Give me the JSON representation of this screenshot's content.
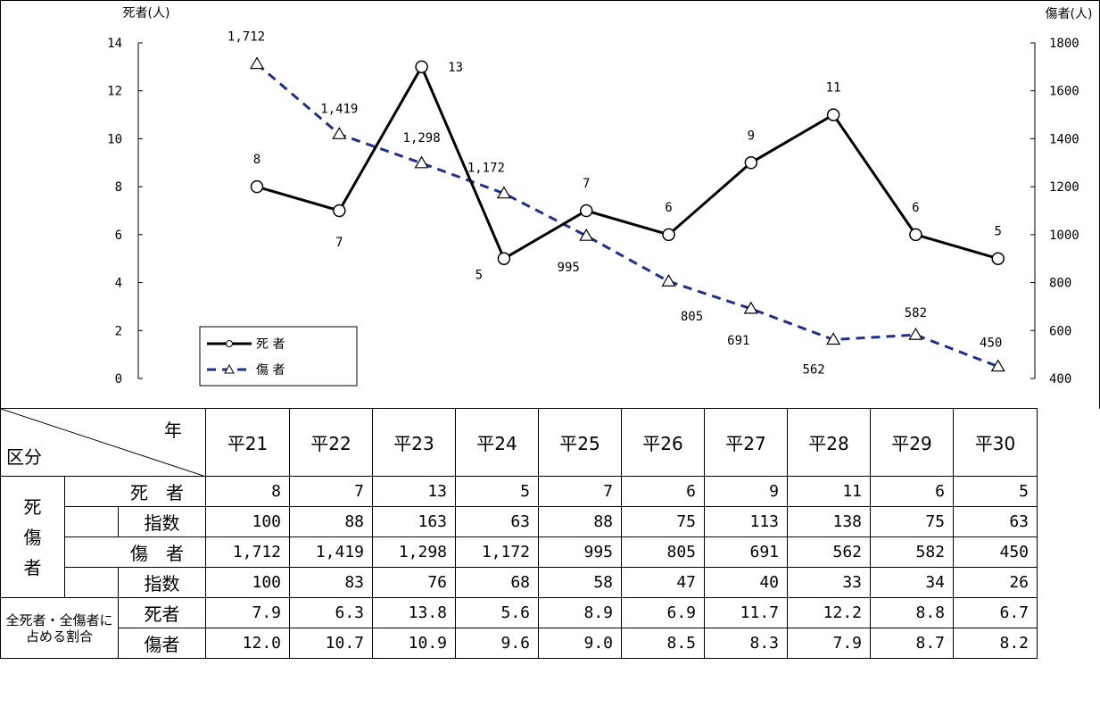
{
  "chart_data": {
    "type": "line",
    "x": [
      "平21",
      "平22",
      "平23",
      "平24",
      "平25",
      "平26",
      "平27",
      "平28",
      "平29",
      "平30"
    ],
    "y_left_title": "死者(人)",
    "y_right_title": "傷者(人)",
    "y_left_range": [
      0,
      14
    ],
    "y_left_ticks": [
      "0",
      "2",
      "4",
      "6",
      "8",
      "10",
      "12",
      "14"
    ],
    "y_right_range": [
      400,
      1800
    ],
    "y_right_ticks": [
      "400",
      "600",
      "800",
      "1000",
      "1200",
      "1400",
      "1600",
      "1800"
    ],
    "grid": false,
    "legend_position": "bottom-left",
    "series": [
      {
        "name": "死 者",
        "axis": "left",
        "values": [
          8,
          7,
          13,
          5,
          7,
          6,
          9,
          11,
          6,
          5
        ],
        "labels": [
          "8",
          "7",
          "13",
          "5",
          "7",
          "6",
          "9",
          "11",
          "6",
          "5"
        ],
        "color": "#000000",
        "style": "solid",
        "marker": "circle"
      },
      {
        "name": "傷 者",
        "axis": "right",
        "values": [
          1712,
          1419,
          1298,
          1172,
          995,
          805,
          691,
          562,
          582,
          450
        ],
        "labels": [
          "1,712",
          "1,419",
          "1,298",
          "1,172",
          "995",
          "805",
          "691",
          "562",
          "582",
          "450"
        ],
        "color": "#1f2f8c",
        "style": "dashed",
        "marker": "triangle"
      }
    ]
  },
  "table": {
    "corner_top": "年",
    "corner_bottom": "区分",
    "years": [
      "平21",
      "平22",
      "平23",
      "平24",
      "平25",
      "平26",
      "平27",
      "平28",
      "平29",
      "平30"
    ],
    "group_label": "死\n傷\n者",
    "rows": {
      "deaths": {
        "label": "死　者",
        "values": [
          "8",
          "7",
          "13",
          "5",
          "7",
          "6",
          "9",
          "11",
          "6",
          "5"
        ]
      },
      "deaths_index": {
        "label": "指数",
        "values": [
          "100",
          "88",
          "163",
          "63",
          "88",
          "75",
          "113",
          "138",
          "75",
          "63"
        ]
      },
      "injuries": {
        "label": "傷　者",
        "values": [
          "1,712",
          "1,419",
          "1,298",
          "1,172",
          "995",
          "805",
          "691",
          "562",
          "582",
          "450"
        ]
      },
      "injuries_index": {
        "label": "指数",
        "values": [
          "100",
          "83",
          "76",
          "68",
          "58",
          "47",
          "40",
          "33",
          "34",
          "26"
        ]
      },
      "ratio_group_label": "全死者・全傷者に占める割合",
      "ratio_deaths": {
        "label": "死者",
        "values": [
          "7.9",
          "6.3",
          "13.8",
          "5.6",
          "8.9",
          "6.9",
          "11.7",
          "12.2",
          "8.8",
          "6.7"
        ]
      },
      "ratio_injuries": {
        "label": "傷者",
        "values": [
          "12.0",
          "10.7",
          "10.9",
          "9.6",
          "9.0",
          "8.5",
          "8.3",
          "7.9",
          "8.7",
          "8.2"
        ]
      }
    }
  }
}
